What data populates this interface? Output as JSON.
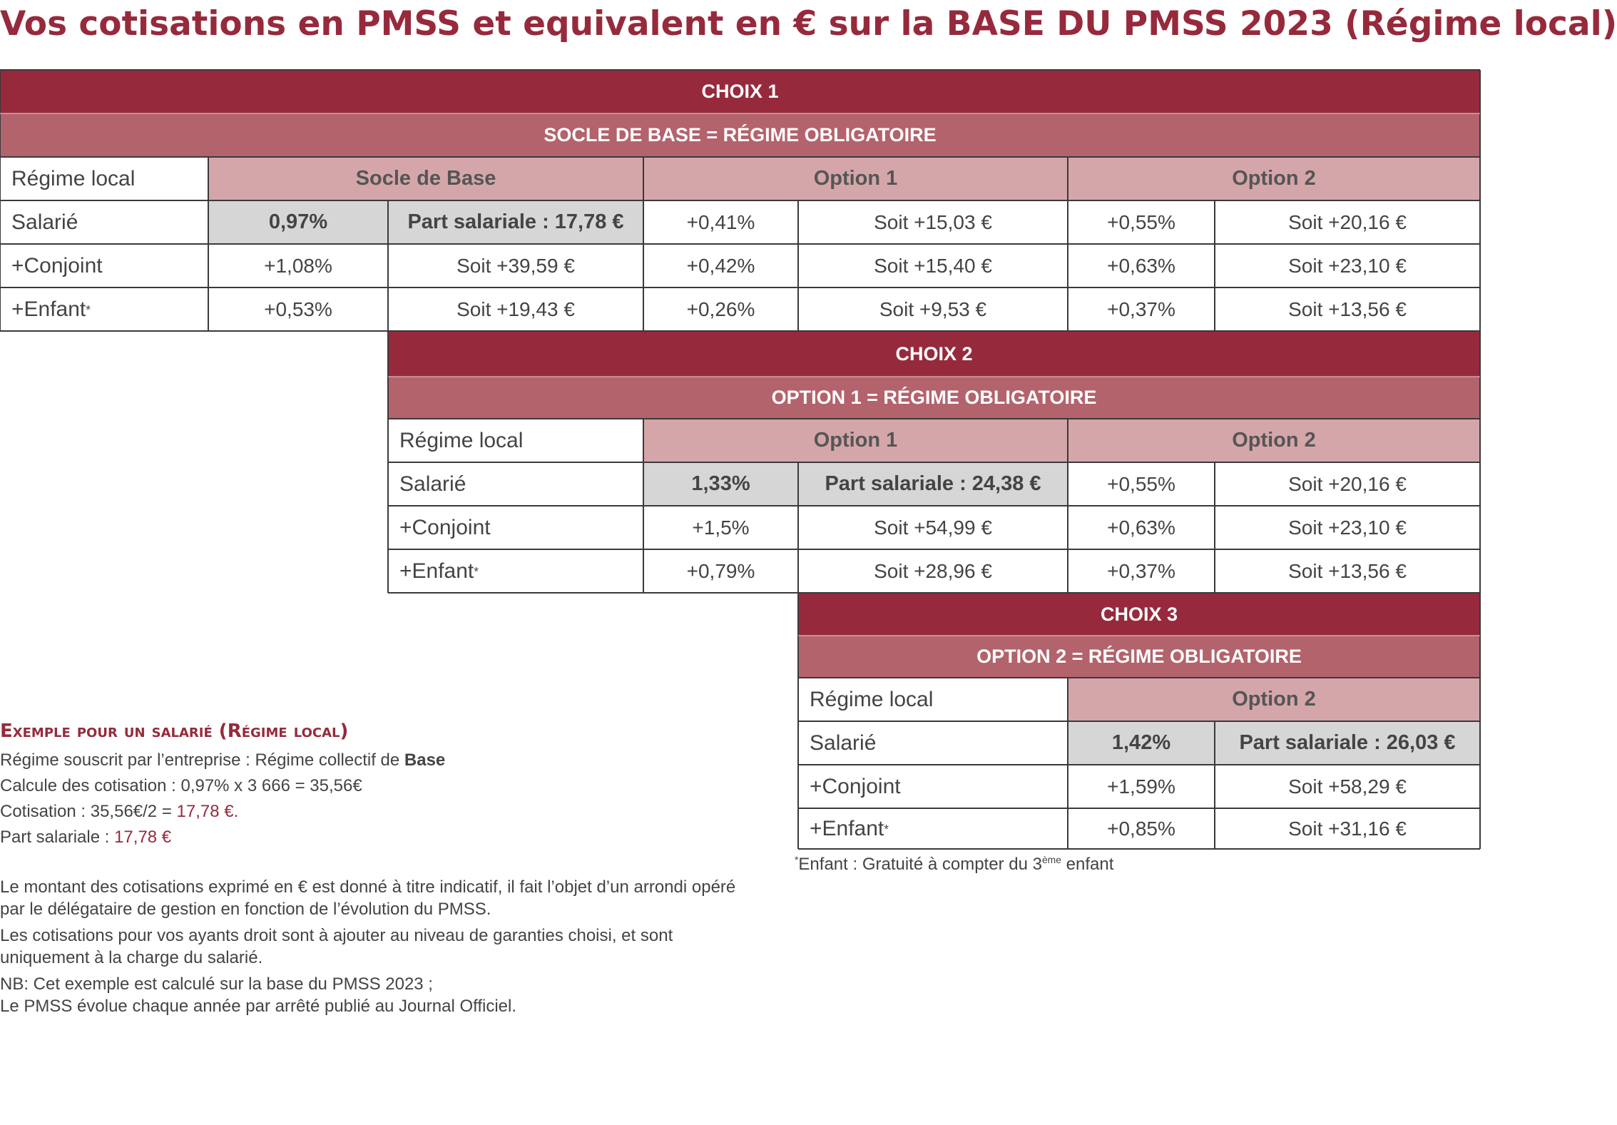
{
  "title": "Vos cotisations en PMSS et equivalent en € sur la BASE DU PMSS 2023 (Régime local)",
  "choix1": {
    "header": "CHOIX 1",
    "subheader": "SOCLE DE BASE = RÉGIME OBLIGATOIRE",
    "row_label_header": "Régime local",
    "columns": [
      "Socle de Base",
      "Option 1",
      "Option 2"
    ],
    "rows": [
      {
        "label": "Salarié",
        "c1": "0,97%",
        "c2": "Part salariale : 17,78 €",
        "c3": "+0,41%",
        "c4": "Soit +15,03 €",
        "c5": "+0,55%",
        "c6": "Soit +20,16 €"
      },
      {
        "label": "+Conjoint",
        "c1": "+1,08%",
        "c2": "Soit +39,59 €",
        "c3": "+0,42%",
        "c4": "Soit +15,40 €",
        "c5": "+0,63%",
        "c6": "Soit +23,10 €"
      },
      {
        "label": "+Enfant",
        "label_sup": "*",
        "c1": "+0,53%",
        "c2": "Soit +19,43 €",
        "c3": "+0,26%",
        "c4": "Soit +9,53 €",
        "c5": "+0,37%",
        "c6": "Soit +13,56 €"
      }
    ]
  },
  "choix2": {
    "header": "CHOIX 2",
    "subheader": "OPTION 1 = RÉGIME OBLIGATOIRE",
    "row_label_header": "Régime local",
    "columns": [
      "Option 1",
      "Option 2"
    ],
    "rows": [
      {
        "label": "Salarié",
        "c1": "1,33%",
        "c2": "Part salariale : 24,38 €",
        "c3": "+0,55%",
        "c4": "Soit +20,16 €"
      },
      {
        "label": "+Conjoint",
        "c1": "+1,5%",
        "c2": "Soit +54,99 €",
        "c3": "+0,63%",
        "c4": "Soit +23,10 €"
      },
      {
        "label": "+Enfant",
        "label_sup": "*",
        "c1": "+0,79%",
        "c2": "Soit +28,96 €",
        "c3": "+0,37%",
        "c4": "Soit +13,56 €"
      }
    ]
  },
  "choix3": {
    "header": "CHOIX 3",
    "subheader": "OPTION 2 = RÉGIME OBLIGATOIRE",
    "row_label_header": "Régime local",
    "columns": [
      "Option 2"
    ],
    "rows": [
      {
        "label": "Salarié",
        "c1": "1,42%",
        "c2": "Part salariale : 26,03 €"
      },
      {
        "label": "+Conjoint",
        "c1": "+1,59%",
        "c2": "Soit +58,29 €"
      },
      {
        "label": "+Enfant",
        "label_sup": "*",
        "c1": "+0,85%",
        "c2": "Soit +31,16 €"
      }
    ]
  },
  "example": {
    "title": "Exemple pour un salarié (Régime local)",
    "line1_prefix": "Régime souscrit par l’entreprise : Régime collectif de ",
    "line1_bold": "Base",
    "line2": "Calcule des cotisation : 0,97% x 3 666 = 35,56€",
    "line3_prefix": "Cotisation : 35,56€/2 = ",
    "line3_value": "17,78 €.",
    "line4_prefix": "Part salariale : ",
    "line4_value": "17,78 €"
  },
  "notes": [
    "Le montant des cotisations exprimé en € est donné à titre indicatif, il fait l’objet d’un arrondi opéré par le délégataire de gestion en fonction de l’évolution du PMSS.",
    "Les cotisations pour vos ayants droit sont à ajouter au niveau de garanties choisi, et sont uniquement à la charge du salarié.",
    "NB: Cet exemple est calculé sur la base du PMSS 2023 ;",
    "Le PMSS évolue chaque année par arrêté publié au Journal Officiel."
  ],
  "footnote": {
    "star": "*",
    "text_before": "Enfant : Gratuité à compter du 3",
    "superscript": "ème",
    "text_after": " enfant"
  },
  "colors": {
    "brand_dark": "#962a3c",
    "brand_mid": "#b3636c",
    "brand_light": "#d4a6aa",
    "highlight_gray": "#d6d6d6"
  }
}
